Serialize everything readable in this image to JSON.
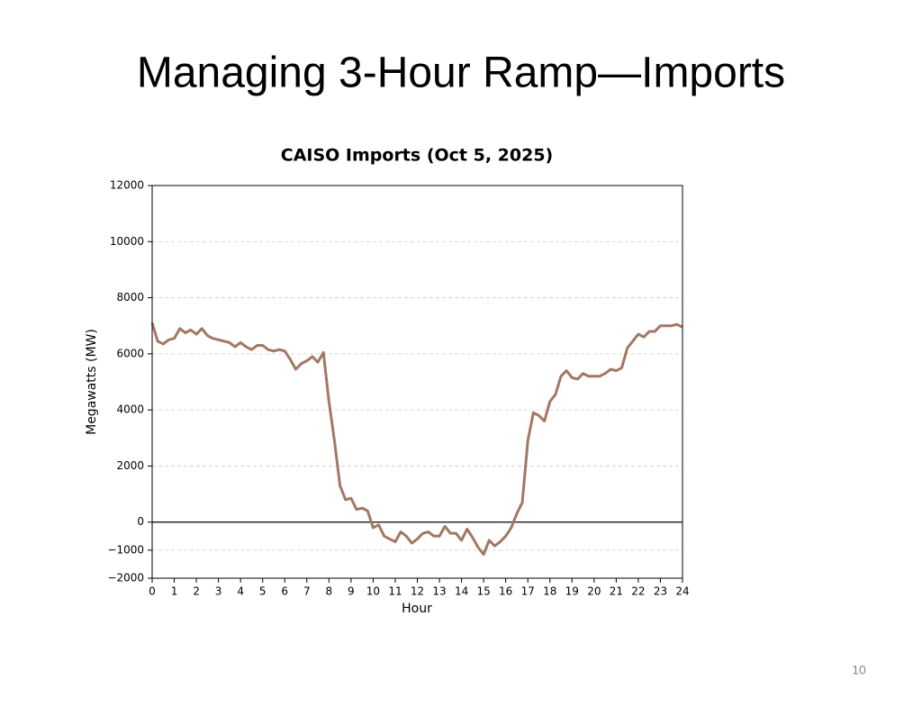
{
  "slide": {
    "title": "Managing 3-Hour Ramp—Imports",
    "page_number": "10"
  },
  "chart_data": {
    "type": "line",
    "title": "CAISO Imports (Oct 5, 2025)",
    "x_label": "Hour",
    "y_label": "Megawatts (MW)",
    "x": [
      0,
      0.25,
      0.5,
      0.75,
      1,
      1.25,
      1.5,
      1.75,
      2,
      2.25,
      2.5,
      2.75,
      3,
      3.25,
      3.5,
      3.75,
      4,
      4.25,
      4.5,
      4.75,
      5,
      5.25,
      5.5,
      5.75,
      6,
      6.25,
      6.5,
      6.75,
      7,
      7.25,
      7.5,
      7.75,
      8,
      8.25,
      8.5,
      8.75,
      9,
      9.25,
      9.5,
      9.75,
      10,
      10.25,
      10.5,
      10.75,
      11,
      11.25,
      11.5,
      11.75,
      12,
      12.25,
      12.5,
      12.75,
      13,
      13.25,
      13.5,
      13.75,
      14,
      14.25,
      14.5,
      14.75,
      15,
      15.25,
      15.5,
      15.75,
      16,
      16.25,
      16.5,
      16.75,
      17,
      17.25,
      17.5,
      17.75,
      18,
      18.25,
      18.5,
      18.75,
      19,
      19.25,
      19.5,
      19.75,
      20,
      20.25,
      20.5,
      20.75,
      21,
      21.25,
      21.5,
      21.75,
      22,
      22.25,
      22.5,
      22.75,
      23,
      23.25,
      23.5,
      23.75,
      24
    ],
    "series": [
      {
        "name": "Imports",
        "color": "#a47764",
        "values": [
          7100,
          6450,
          6350,
          6500,
          6550,
          6900,
          6750,
          6850,
          6700,
          6900,
          6650,
          6550,
          6500,
          6450,
          6400,
          6250,
          6400,
          6250,
          6150,
          6300,
          6300,
          6150,
          6100,
          6150,
          6100,
          5800,
          5450,
          5650,
          5750,
          5900,
          5700,
          6050,
          4300,
          2900,
          1300,
          800,
          850,
          450,
          500,
          400,
          -200,
          -100,
          -500,
          -600,
          -700,
          -350,
          -500,
          -750,
          -600,
          -400,
          -350,
          -500,
          -500,
          -150,
          -400,
          -400,
          -650,
          -250,
          -550,
          -900,
          -1150,
          -650,
          -850,
          -700,
          -500,
          -200,
          300,
          700,
          2900,
          3900,
          3800,
          3600,
          4300,
          4550,
          5200,
          5400,
          5150,
          5100,
          5300,
          5200,
          5200,
          5200,
          5300,
          5450,
          5400,
          5500,
          6200,
          6450,
          6700,
          6600,
          6800,
          6800,
          7000,
          7000,
          7000,
          7050,
          6950
        ]
      }
    ],
    "xlim": [
      0,
      24
    ],
    "ylim": [
      -2000,
      12000
    ],
    "xticks": [
      0,
      1,
      2,
      3,
      4,
      5,
      6,
      7,
      8,
      9,
      10,
      11,
      12,
      13,
      14,
      15,
      16,
      17,
      18,
      19,
      20,
      21,
      22,
      23,
      24
    ],
    "yticks": [
      {
        "value": -2000,
        "label": "−2000"
      },
      {
        "value": -1000,
        "label": "−1000"
      },
      0,
      2000,
      4000,
      6000,
      8000,
      10000,
      12000
    ],
    "grid": true,
    "zero_line": true
  }
}
